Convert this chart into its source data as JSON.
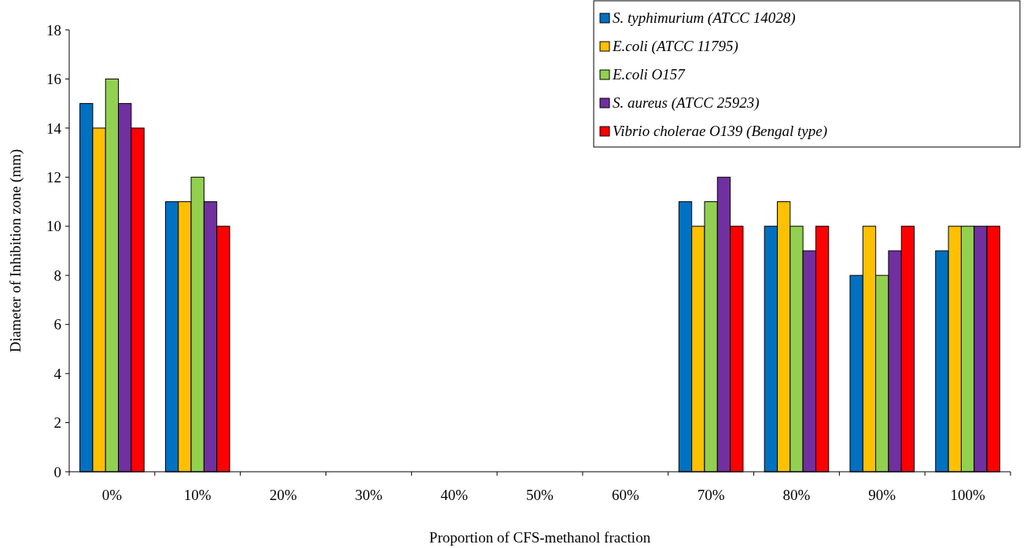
{
  "chart_data": {
    "type": "bar",
    "xlabel": "Proportion of CFS-methanol fraction",
    "ylabel": "Diameter of Inhibition zone (mm)",
    "categories": [
      "0%",
      "10%",
      "20%",
      "30%",
      "40%",
      "50%",
      "60%",
      "70%",
      "80%",
      "90%",
      "100%"
    ],
    "series": [
      {
        "name": "S. typhimurium (ATCC 14028)",
        "color": "#0070c0",
        "values": [
          15,
          11,
          0,
          0,
          0,
          0,
          0,
          11,
          10,
          8,
          9
        ]
      },
      {
        "name": "E.coli (ATCC 11795)",
        "color": "#ffc000",
        "values": [
          14,
          11,
          0,
          0,
          0,
          0,
          0,
          10,
          11,
          10,
          10
        ]
      },
      {
        "name": "E.coli O157",
        "color": "#92d050",
        "values": [
          16,
          12,
          0,
          0,
          0,
          0,
          0,
          11,
          10,
          8,
          10
        ]
      },
      {
        "name": "S. aureus (ATCC 25923)",
        "color": "#7030a0",
        "values": [
          15,
          11,
          0,
          0,
          0,
          0,
          0,
          12,
          9,
          9,
          10
        ]
      },
      {
        "name": "Vibrio cholerae O139 (Bengal type)",
        "color": "#ff0000",
        "values": [
          14,
          10,
          0,
          0,
          0,
          0,
          0,
          10,
          10,
          10,
          10
        ]
      }
    ],
    "ylim": [
      0,
      18
    ],
    "yticks": [
      0,
      2,
      4,
      6,
      8,
      10,
      12,
      14,
      16,
      18
    ],
    "grid": false,
    "legend": "top right"
  }
}
